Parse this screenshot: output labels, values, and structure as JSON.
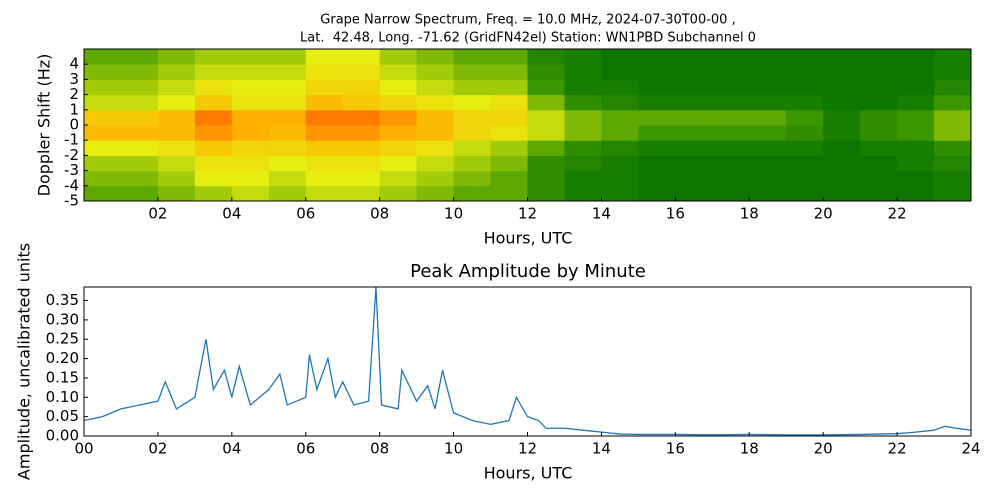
{
  "chart_data": [
    {
      "type": "heatmap",
      "title": [
        "Grape Narrow Spectrum, Freq. = 10.0 MHz, 2024-07-30T00-00 ,",
        "Lat.  42.48, Long. -71.62 (GridFN42el) Station: WN1PBD Subchannel 0"
      ],
      "xlabel": "Hours, UTC",
      "ylabel": "Doppler Shift (Hz)",
      "xlim": [
        0,
        24
      ],
      "ylim": [
        -5,
        5
      ],
      "xticks": [
        {
          "value": 2,
          "label": "02"
        },
        {
          "value": 4,
          "label": "04"
        },
        {
          "value": 6,
          "label": "06"
        },
        {
          "value": 8,
          "label": "08"
        },
        {
          "value": 10,
          "label": "10"
        },
        {
          "value": 12,
          "label": "12"
        },
        {
          "value": 14,
          "label": "14"
        },
        {
          "value": 16,
          "label": "16"
        },
        {
          "value": 18,
          "label": "18"
        },
        {
          "value": 20,
          "label": "20"
        },
        {
          "value": 22,
          "label": "22"
        }
      ],
      "yticks": [
        -5,
        -4,
        -3,
        -2,
        -1,
        0,
        1,
        2,
        3,
        4
      ],
      "colorscale": [
        "#006e00",
        "#3c9600",
        "#e6ee10",
        "#ffb000",
        "#ff2a00"
      ],
      "x": [
        0.5,
        1.5,
        2.5,
        3.5,
        4.5,
        5.5,
        6.5,
        7.5,
        8.5,
        9.5,
        10.5,
        11.5,
        12.5,
        13.5,
        14.5,
        15.5,
        16.5,
        17.5,
        18.5,
        19.5,
        20.5,
        21.5,
        22.5,
        23.5
      ],
      "y": [
        -4.5,
        -3.5,
        -2.5,
        -1.5,
        -0.5,
        0.5,
        1.5,
        2.5,
        3.5,
        4.5
      ],
      "z": [
        [
          0.3,
          0.3,
          0.35,
          0.4,
          0.45,
          0.4,
          0.45,
          0.45,
          0.4,
          0.35,
          0.3,
          0.3,
          0.2,
          0.1,
          0.1,
          0.05,
          0.05,
          0.05,
          0.05,
          0.05,
          0.05,
          0.05,
          0.05,
          0.1
        ],
        [
          0.35,
          0.35,
          0.4,
          0.5,
          0.5,
          0.45,
          0.5,
          0.5,
          0.45,
          0.4,
          0.35,
          0.3,
          0.2,
          0.1,
          0.1,
          0.05,
          0.05,
          0.05,
          0.05,
          0.05,
          0.05,
          0.05,
          0.05,
          0.1
        ],
        [
          0.4,
          0.4,
          0.45,
          0.55,
          0.55,
          0.5,
          0.55,
          0.55,
          0.5,
          0.45,
          0.4,
          0.35,
          0.2,
          0.15,
          0.1,
          0.05,
          0.05,
          0.05,
          0.05,
          0.05,
          0.05,
          0.05,
          0.1,
          0.15
        ],
        [
          0.5,
          0.5,
          0.55,
          0.65,
          0.6,
          0.6,
          0.65,
          0.65,
          0.6,
          0.55,
          0.45,
          0.4,
          0.3,
          0.2,
          0.15,
          0.1,
          0.1,
          0.1,
          0.1,
          0.1,
          0.05,
          0.1,
          0.1,
          0.2
        ],
        [
          0.7,
          0.7,
          0.7,
          0.8,
          0.75,
          0.7,
          0.8,
          0.8,
          0.75,
          0.7,
          0.6,
          0.55,
          0.45,
          0.35,
          0.3,
          0.25,
          0.25,
          0.25,
          0.25,
          0.2,
          0.1,
          0.2,
          0.25,
          0.35
        ],
        [
          0.65,
          0.65,
          0.7,
          0.85,
          0.75,
          0.75,
          0.85,
          0.85,
          0.8,
          0.7,
          0.6,
          0.6,
          0.45,
          0.35,
          0.3,
          0.3,
          0.3,
          0.3,
          0.3,
          0.25,
          0.1,
          0.2,
          0.25,
          0.35
        ],
        [
          0.45,
          0.45,
          0.5,
          0.65,
          0.55,
          0.55,
          0.7,
          0.65,
          0.6,
          0.55,
          0.5,
          0.55,
          0.35,
          0.2,
          0.15,
          0.1,
          0.1,
          0.1,
          0.1,
          0.1,
          0.05,
          0.05,
          0.1,
          0.25
        ],
        [
          0.4,
          0.4,
          0.45,
          0.55,
          0.5,
          0.5,
          0.6,
          0.6,
          0.5,
          0.45,
          0.4,
          0.4,
          0.25,
          0.1,
          0.1,
          0.05,
          0.05,
          0.05,
          0.05,
          0.05,
          0.05,
          0.05,
          0.05,
          0.15
        ],
        [
          0.35,
          0.35,
          0.4,
          0.45,
          0.45,
          0.45,
          0.55,
          0.55,
          0.45,
          0.4,
          0.35,
          0.35,
          0.2,
          0.1,
          0.05,
          0.05,
          0.05,
          0.05,
          0.05,
          0.05,
          0.05,
          0.05,
          0.05,
          0.1
        ],
        [
          0.3,
          0.3,
          0.35,
          0.4,
          0.4,
          0.4,
          0.5,
          0.5,
          0.4,
          0.35,
          0.3,
          0.3,
          0.15,
          0.1,
          0.05,
          0.05,
          0.05,
          0.05,
          0.05,
          0.05,
          0.05,
          0.05,
          0.05,
          0.1
        ]
      ]
    },
    {
      "type": "line",
      "title": [
        "Peak Amplitude by Minute"
      ],
      "xlabel": "Hours, UTC",
      "ylabel": "Amplitude, uncalibrated units",
      "xlim": [
        0,
        24
      ],
      "ylim": [
        0,
        0.385
      ],
      "xticks": [
        {
          "value": 0,
          "label": "00"
        },
        {
          "value": 2,
          "label": "02"
        },
        {
          "value": 4,
          "label": "04"
        },
        {
          "value": 6,
          "label": "06"
        },
        {
          "value": 8,
          "label": "08"
        },
        {
          "value": 10,
          "label": "10"
        },
        {
          "value": 12,
          "label": "12"
        },
        {
          "value": 14,
          "label": "14"
        },
        {
          "value": 16,
          "label": "16"
        },
        {
          "value": 18,
          "label": "18"
        },
        {
          "value": 20,
          "label": "20"
        },
        {
          "value": 22,
          "label": "22"
        },
        {
          "value": 24,
          "label": "24"
        }
      ],
      "yticks": [
        {
          "value": 0,
          "label": "0.00"
        },
        0.05,
        {
          "value": 0.1,
          "label": "0.10"
        },
        0.15,
        {
          "value": 0.2,
          "label": "0.20"
        },
        0.25,
        {
          "value": 0.3,
          "label": "0.30"
        },
        0.35
      ],
      "color": "#1f77b4",
      "x": [
        0,
        0.5,
        1,
        1.5,
        2,
        2.2,
        2.5,
        3,
        3.3,
        3.5,
        3.8,
        4,
        4.2,
        4.5,
        5,
        5.3,
        5.5,
        6,
        6.1,
        6.3,
        6.6,
        6.8,
        7,
        7.3,
        7.7,
        7.9,
        8.05,
        8.5,
        8.6,
        9,
        9.3,
        9.5,
        9.7,
        10,
        10.5,
        11,
        11.5,
        11.7,
        12,
        12.3,
        12.5,
        13,
        13.5,
        14,
        14.5,
        15,
        16,
        17,
        18,
        19,
        20,
        21,
        22,
        22.5,
        23,
        23.3,
        23.6,
        24
      ],
      "values": [
        0.04,
        0.05,
        0.07,
        0.08,
        0.09,
        0.14,
        0.07,
        0.1,
        0.25,
        0.12,
        0.17,
        0.1,
        0.18,
        0.08,
        0.12,
        0.16,
        0.08,
        0.1,
        0.21,
        0.12,
        0.2,
        0.1,
        0.14,
        0.08,
        0.09,
        0.385,
        0.08,
        0.07,
        0.17,
        0.09,
        0.13,
        0.07,
        0.17,
        0.06,
        0.04,
        0.03,
        0.04,
        0.1,
        0.05,
        0.04,
        0.02,
        0.02,
        0.015,
        0.01,
        0.005,
        0.004,
        0.004,
        0.003,
        0.004,
        0.003,
        0.003,
        0.004,
        0.006,
        0.01,
        0.015,
        0.025,
        0.02,
        0.015
      ]
    }
  ]
}
